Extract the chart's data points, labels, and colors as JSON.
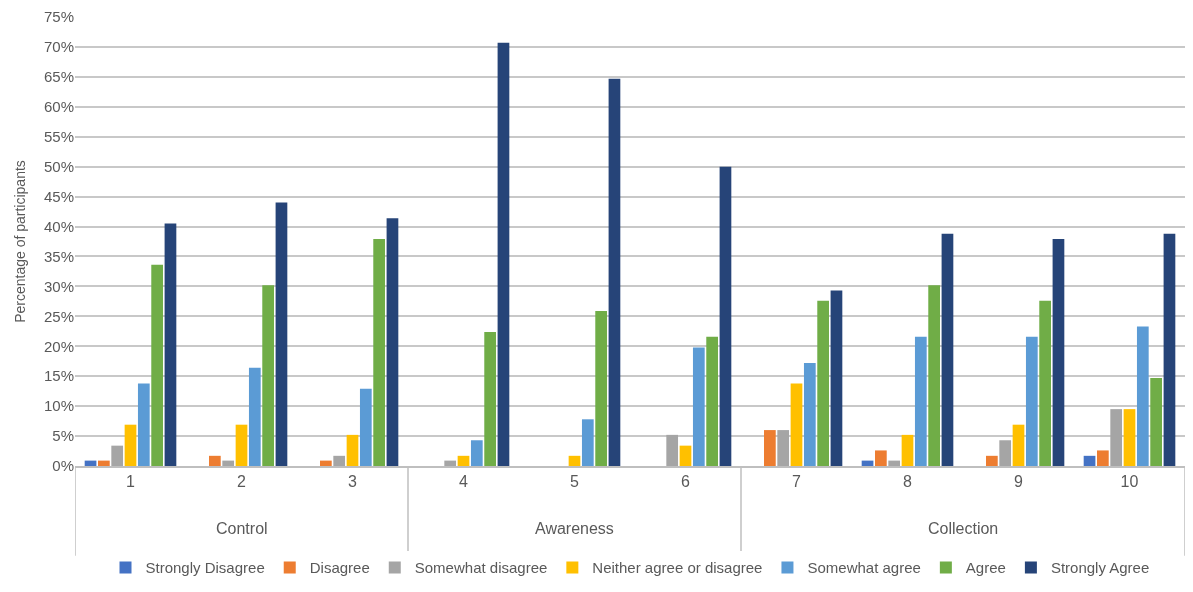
{
  "chart_data": {
    "type": "bar",
    "ylabel": "Percentage of participants",
    "categories": [
      "1",
      "2",
      "3",
      "4",
      "5",
      "6",
      "7",
      "8",
      "9",
      "10"
    ],
    "series": [
      {
        "name": "Strongly Disagree",
        "color": "#4472c4",
        "values": [
          0.9,
          0,
          0,
          0,
          0,
          0,
          0,
          0.9,
          0,
          1.7
        ]
      },
      {
        "name": "Disagree",
        "color": "#ed7d31",
        "values": [
          0.9,
          1.7,
          0.9,
          0,
          0,
          0,
          6.0,
          2.6,
          1.7,
          2.6
        ]
      },
      {
        "name": "Somewhat disagree",
        "color": "#a5a5a5",
        "values": [
          3.4,
          0.9,
          1.7,
          0.9,
          0,
          5.2,
          6.0,
          0.9,
          4.3,
          9.5
        ]
      },
      {
        "name": "Neither agree or disagree",
        "color": "#ffc000",
        "values": [
          6.9,
          6.9,
          5.2,
          1.7,
          1.7,
          3.4,
          13.8,
          5.2,
          6.9,
          9.5
        ]
      },
      {
        "name": "Somewhat agree",
        "color": "#5b9bd5",
        "values": [
          13.8,
          16.4,
          12.9,
          4.3,
          7.8,
          19.8,
          17.2,
          21.6,
          21.6,
          23.3
        ]
      },
      {
        "name": "Agree",
        "color": "#70ad47",
        "values": [
          33.6,
          30.2,
          37.9,
          22.4,
          25.9,
          21.6,
          27.6,
          30.2,
          27.6,
          14.7
        ]
      },
      {
        "name": "Strongly Agree",
        "color": "#264478",
        "values": [
          40.5,
          44.0,
          41.4,
          70.7,
          64.7,
          50.0,
          29.3,
          38.8,
          37.9,
          38.8
        ]
      }
    ],
    "ylim": [
      0,
      75
    ],
    "yticks": [
      {
        "value": 0,
        "label": "0%"
      },
      {
        "value": 5,
        "label": "5%"
      },
      {
        "value": 10,
        "label": "10%"
      },
      {
        "value": 15,
        "label": "15%"
      },
      {
        "value": 20,
        "label": "20%"
      },
      {
        "value": 25,
        "label": "25%"
      },
      {
        "value": 30,
        "label": "30%"
      },
      {
        "value": 35,
        "label": "35%"
      },
      {
        "value": 40,
        "label": "40%"
      },
      {
        "value": 45,
        "label": "45%"
      },
      {
        "value": 50,
        "label": "50%"
      },
      {
        "value": 55,
        "label": "55%"
      },
      {
        "value": 60,
        "label": "60%"
      },
      {
        "value": 65,
        "label": "65%"
      },
      {
        "value": 70,
        "label": "70%"
      },
      {
        "value": 75,
        "label": "75%"
      }
    ],
    "annotations": [
      "Control",
      "Awareness",
      "Collection"
    ],
    "grid": "y",
    "legend": "bottom"
  }
}
